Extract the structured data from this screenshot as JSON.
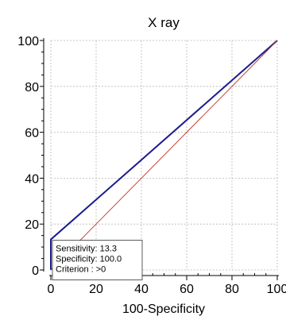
{
  "chart_data": {
    "type": "line",
    "title": "X ray",
    "xlabel": "100-Specificity",
    "ylabel": "",
    "xlim": [
      0,
      100
    ],
    "ylim": [
      0,
      100
    ],
    "xticks": [
      "0",
      "20",
      "40",
      "60",
      "80",
      "100"
    ],
    "yticks": [
      "0",
      "20",
      "40",
      "60",
      "80",
      "100"
    ],
    "grid": true,
    "series": [
      {
        "role": "roc-curve",
        "color": "#1c1c8f",
        "x": [
          0,
          0,
          100
        ],
        "y": [
          0,
          13.3,
          100
        ]
      },
      {
        "role": "reference-diagonal",
        "color": "#c0392b",
        "x": [
          0,
          100
        ],
        "y": [
          0,
          100
        ]
      }
    ],
    "annotation": {
      "point": {
        "x": 0,
        "y": 13.3
      },
      "lines": [
        "Sensitivity: 13.3",
        "Specificity: 100.0",
        "Criterion : >0"
      ]
    }
  }
}
